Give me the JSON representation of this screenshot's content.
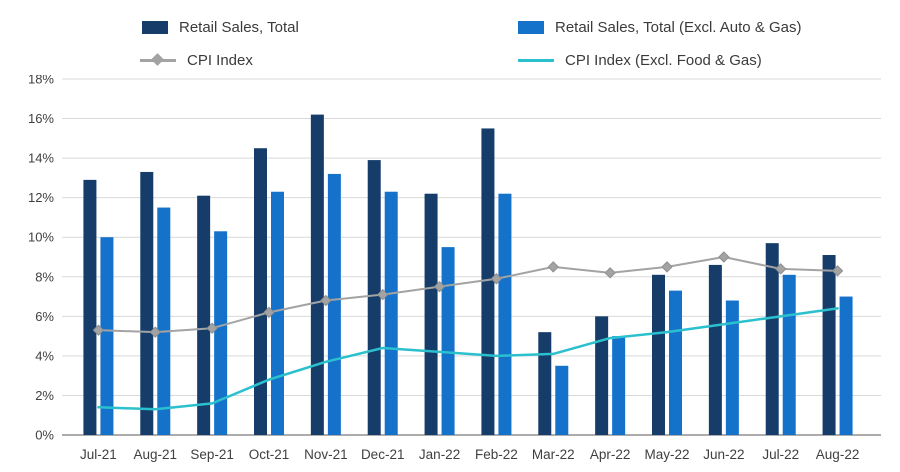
{
  "page": {
    "background": "#ffffff"
  },
  "legend": {
    "items": [
      {
        "label": "Retail Sales, Total",
        "swatch": "bar",
        "color": "#163d69"
      },
      {
        "label": "Retail Sales, Total (Excl. Auto & Gas)",
        "swatch": "bar",
        "color": "#1472cb"
      },
      {
        "label": "CPI Index",
        "swatch": "line-diamond",
        "color": "#a3a3a3"
      },
      {
        "label": "CPI Index (Excl. Food & Gas)",
        "swatch": "line",
        "color": "#2bc0ce"
      }
    ]
  },
  "chart_data": {
    "type": "combo-bar-line",
    "title": "",
    "xlabel": "",
    "ylabel": "",
    "categories": [
      "Jul-21",
      "Aug-21",
      "Sep-21",
      "Oct-21",
      "Nov-21",
      "Dec-21",
      "Jan-22",
      "Feb-22",
      "Mar-22",
      "Apr-22",
      "May-22",
      "Jun-22",
      "Jul-22",
      "Aug-22"
    ],
    "series": [
      {
        "name": "Retail Sales, Total",
        "type": "bar",
        "color": "#163d69",
        "values": [
          12.9,
          13.3,
          12.1,
          14.5,
          16.2,
          13.9,
          12.2,
          15.5,
          5.2,
          6.0,
          8.1,
          8.6,
          9.7,
          9.1
        ]
      },
      {
        "name": "Retail Sales, Total (Excl. Auto & Gas)",
        "type": "bar",
        "color": "#1472cb",
        "values": [
          10.0,
          11.5,
          10.3,
          12.3,
          13.2,
          12.3,
          9.5,
          12.2,
          3.5,
          5.0,
          7.3,
          6.8,
          8.1,
          7.0
        ]
      },
      {
        "name": "CPI Index",
        "type": "line",
        "marker": "diamond",
        "color": "#a3a3a3",
        "values": [
          5.3,
          5.2,
          5.4,
          6.2,
          6.8,
          7.1,
          7.5,
          7.9,
          8.5,
          8.2,
          8.5,
          9.0,
          8.4,
          8.3
        ]
      },
      {
        "name": "CPI Index (Excl. Food & Gas)",
        "type": "line",
        "marker": "none",
        "color": "#2bc0ce",
        "values": [
          1.4,
          1.3,
          1.6,
          2.8,
          3.7,
          4.4,
          4.2,
          4.0,
          4.1,
          4.9,
          5.2,
          5.6,
          6.0,
          6.4
        ]
      }
    ],
    "ylim": [
      0,
      18
    ],
    "ytick_step": 2,
    "yticks": [
      "0%",
      "2%",
      "4%",
      "6%",
      "8%",
      "10%",
      "12%",
      "14%",
      "16%",
      "18%"
    ],
    "grid": true,
    "legend_position": "top",
    "colors": {
      "gridline": "#d9d9d9",
      "axis_line": "#595959",
      "tick_text": "#404040"
    }
  }
}
